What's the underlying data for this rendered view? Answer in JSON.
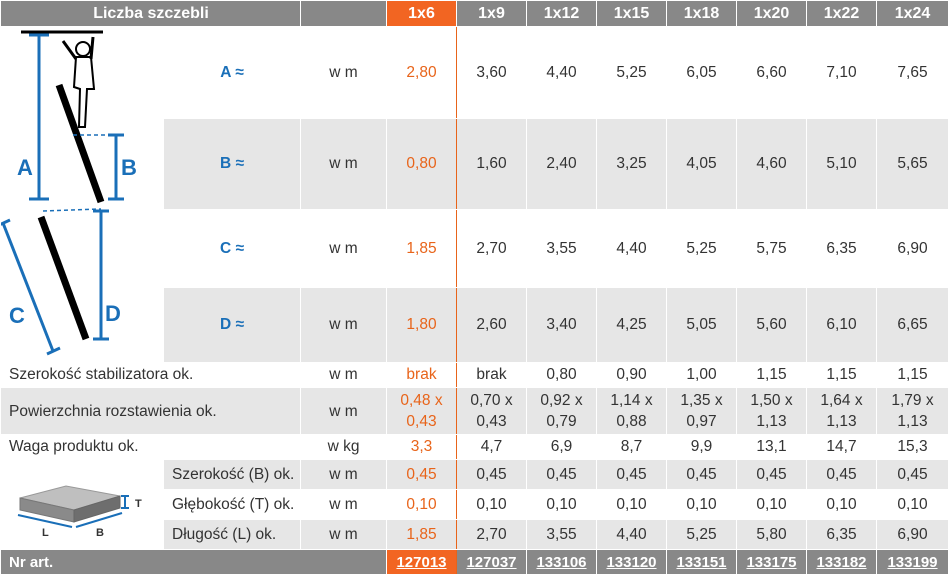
{
  "header": {
    "title": "Liczba szczebli",
    "cols": [
      "1x6",
      "1x9",
      "1x12",
      "1x15",
      "1x18",
      "1x20",
      "1x22",
      "1x24"
    ]
  },
  "dims": [
    {
      "label": "A ≈",
      "unit": "w m",
      "values": [
        "2,80",
        "3,60",
        "4,40",
        "5,25",
        "6,05",
        "6,60",
        "7,10",
        "7,65"
      ]
    },
    {
      "label": "B ≈",
      "unit": "w m",
      "values": [
        "0,80",
        "1,60",
        "2,40",
        "3,25",
        "4,05",
        "4,60",
        "5,10",
        "5,65"
      ]
    },
    {
      "label": "C ≈",
      "unit": "w m",
      "values": [
        "1,85",
        "2,70",
        "3,55",
        "4,40",
        "5,25",
        "5,75",
        "6,35",
        "6,90"
      ]
    },
    {
      "label": "D ≈",
      "unit": "w m",
      "values": [
        "1,80",
        "2,60",
        "3,40",
        "4,25",
        "5,05",
        "5,60",
        "6,10",
        "6,65"
      ]
    }
  ],
  "stabilizer": {
    "label": "Szerokość stabilizatora ok.",
    "unit": "w m",
    "values": [
      "brak",
      "brak",
      "0,80",
      "0,90",
      "1,00",
      "1,15",
      "1,15",
      "1,15"
    ]
  },
  "area": {
    "label": "Powierzchnia rozstawienia ok.",
    "unit": "w m",
    "top": [
      "0,48 x",
      "0,70 x",
      "0,92 x",
      "1,14 x",
      "1,35 x",
      "1,50 x",
      "1,64 x",
      "1,79 x"
    ],
    "bottom": [
      "0,43",
      "0,43",
      "0,79",
      "0,88",
      "0,97",
      "1,13",
      "1,13",
      "1,13"
    ]
  },
  "weight": {
    "label": "Waga produktu ok.",
    "unit": "w kg",
    "values": [
      "3,3",
      "4,7",
      "6,9",
      "8,7",
      "9,9",
      "13,1",
      "14,7",
      "15,3"
    ]
  },
  "pack": [
    {
      "label": "Szerokość (B) ok.",
      "unit": "w m",
      "values": [
        "0,45",
        "0,45",
        "0,45",
        "0,45",
        "0,45",
        "0,45",
        "0,45",
        "0,45"
      ]
    },
    {
      "label": "Głębokość (T) ok.",
      "unit": "w m",
      "values": [
        "0,10",
        "0,10",
        "0,10",
        "0,10",
        "0,10",
        "0,10",
        "0,10",
        "0,10"
      ]
    },
    {
      "label": "Długość (L) ok.",
      "unit": "w m",
      "values": [
        "1,85",
        "2,70",
        "3,55",
        "4,40",
        "5,25",
        "5,80",
        "6,35",
        "6,90"
      ]
    }
  ],
  "diagram": {
    "a": "A",
    "b": "B",
    "c": "C",
    "d": "D",
    "box_t": "T",
    "box_l": "L",
    "box_b": "B"
  },
  "footer": {
    "label": "Nr art.",
    "values": [
      "127013",
      "127037",
      "133106",
      "133120",
      "133151",
      "133175",
      "133182",
      "133199"
    ]
  }
}
